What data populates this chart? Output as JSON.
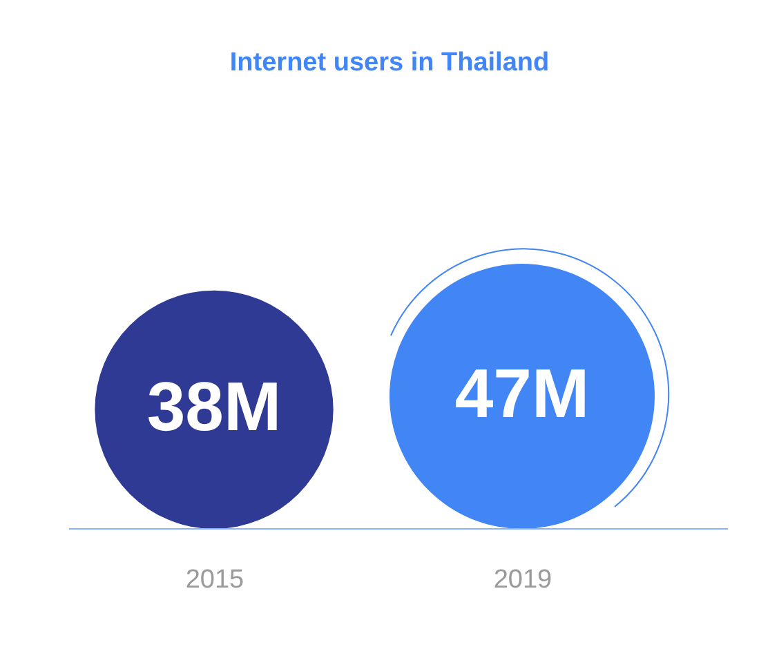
{
  "chart_data": {
    "type": "other",
    "title": "Internet users in Thailand",
    "categories": [
      "2015",
      "2019"
    ],
    "values": [
      38,
      47
    ],
    "value_labels": [
      "38M",
      "47M"
    ],
    "colors": [
      "#2e3a93",
      "#4285f4"
    ]
  }
}
